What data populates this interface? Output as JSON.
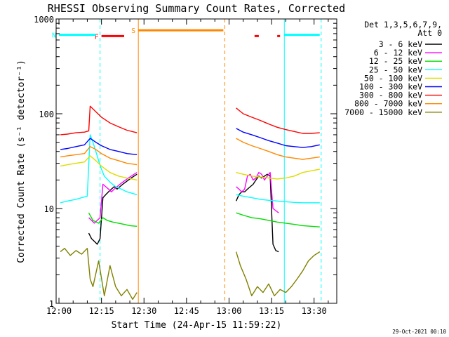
{
  "chart_data": {
    "type": "line",
    "title": "RHESSI Observing Summary Count Rates, Corrected",
    "xlabel": "Start Time (24-Apr-15 11:59:22)",
    "ylabel": "Corrected Count Rate (s⁻¹ detector⁻¹)",
    "x_unit": "minutes since 12:00",
    "xlim": [
      -1,
      98
    ],
    "ylim": [
      1,
      1000
    ],
    "yscale": "log",
    "x_ticks": [
      {
        "value": 0,
        "label": "12:00"
      },
      {
        "value": 15,
        "label": "12:15"
      },
      {
        "value": 30,
        "label": "12:30"
      },
      {
        "value": 45,
        "label": "12:45"
      },
      {
        "value": 60,
        "label": "13:00"
      },
      {
        "value": 75,
        "label": "13:15"
      },
      {
        "value": 90,
        "label": "13:30"
      }
    ],
    "y_ticks": [
      {
        "value": 1,
        "label": "1"
      },
      {
        "value": 10,
        "label": "10"
      },
      {
        "value": 100,
        "label": "100"
      },
      {
        "value": 1000,
        "label": "1000"
      }
    ],
    "legend_header": [
      "Det 1,3,5,6,7,9,",
      "Att 0"
    ],
    "legend_position": "right",
    "series": [
      {
        "name": "3 - 6 keV",
        "color": "#000000",
        "x": [
          10.5,
          11.5,
          12.5,
          13.5,
          14.5,
          15.5,
          16.5,
          17.5,
          18.5,
          19.5,
          20.5,
          21.5,
          22.5,
          23.5,
          24.5,
          25.5,
          26.5,
          27.5,
          62.5,
          63.5,
          64.5,
          65.5,
          66.5,
          67.5,
          68.5,
          69.5,
          70.5,
          71.5,
          72.5,
          73.5,
          74.5,
          75.5,
          76.5,
          77.5
        ],
        "y": [
          5.5,
          4.8,
          4.5,
          4.2,
          4.8,
          13,
          14,
          15,
          16,
          17,
          16,
          17,
          18,
          19,
          20,
          21,
          22,
          23,
          12,
          14,
          15,
          15,
          16,
          17,
          18,
          20,
          22,
          21,
          22,
          23,
          22,
          4.2,
          3.6,
          3.5
        ]
      },
      {
        "name": "6 - 12 keV",
        "color": "#ff00ff",
        "x": [
          10.5,
          11.5,
          12.5,
          13.5,
          14.5,
          15.5,
          16.5,
          17.5,
          18.5,
          19.5,
          20.5,
          21.5,
          22.5,
          23.5,
          24.5,
          25.5,
          26.5,
          27.5,
          62.5,
          63.5,
          64.5,
          65.5,
          66.5,
          67.5,
          68.5,
          69.5,
          70.5,
          71.5,
          72.5,
          73.5,
          74.5,
          75.5,
          76.5,
          77.5
        ],
        "y": [
          8,
          7.5,
          7,
          7.5,
          8,
          18,
          17,
          16,
          15,
          16,
          17,
          18,
          19,
          20,
          21,
          22,
          23,
          24,
          17,
          16,
          15,
          16,
          22,
          23,
          20,
          21,
          24,
          23,
          20,
          22,
          24,
          10,
          9.5,
          9
        ]
      },
      {
        "name": "12 - 25 keV",
        "color": "#00dd00",
        "x": [
          10.5,
          12,
          14,
          15.5,
          17,
          19,
          21,
          23,
          25,
          27.5,
          62.5,
          65,
          68,
          71,
          74,
          77,
          80,
          83,
          86,
          89,
          92
        ],
        "y": [
          9,
          7.5,
          7,
          8,
          7.5,
          7.2,
          7,
          6.8,
          6.6,
          6.5,
          9,
          8.5,
          8,
          7.8,
          7.5,
          7.2,
          7,
          6.8,
          6.6,
          6.5,
          6.4
        ]
      },
      {
        "name": "25 - 50 keV",
        "color": "#00ffff",
        "x": [
          0.5,
          3,
          6,
          8,
          10,
          11,
          12,
          13,
          14,
          15,
          16,
          18,
          20,
          22,
          24,
          27.5,
          62.5,
          65,
          68,
          71,
          74,
          77,
          80,
          83,
          86,
          89,
          92
        ],
        "y": [
          11.5,
          12,
          12.5,
          13,
          13.5,
          60,
          50,
          40,
          32,
          26,
          22,
          19,
          17,
          16,
          15,
          14,
          14,
          13.5,
          13,
          12.5,
          12.2,
          12,
          11.8,
          11.6,
          11.5,
          11.5,
          11.5
        ]
      },
      {
        "name": "50 - 100 keV",
        "color": "#dddd00",
        "x": [
          0.5,
          3,
          6,
          9,
          11,
          13,
          15,
          18,
          21,
          24,
          27.5,
          62.5,
          65,
          68,
          71,
          74,
          77,
          80,
          83,
          86,
          89,
          92
        ],
        "y": [
          28,
          29,
          30,
          31,
          36,
          32,
          28,
          24,
          22,
          21,
          20,
          24,
          23,
          22,
          21.5,
          21,
          20.5,
          21,
          22,
          24,
          25,
          26
        ]
      },
      {
        "name": "100 - 300 keV",
        "color": "#0000ff",
        "x": [
          0.5,
          3,
          6,
          9,
          11,
          13,
          15,
          18,
          21,
          24,
          27.5,
          62.5,
          65,
          68,
          71,
          74,
          77,
          80,
          83,
          86,
          89,
          92
        ],
        "y": [
          42,
          43,
          45,
          47,
          55,
          50,
          46,
          42,
          40,
          38,
          37,
          70,
          64,
          60,
          56,
          52,
          49,
          46,
          45,
          44,
          45,
          47
        ]
      },
      {
        "name": "300 - 800 keV",
        "color": "#ff0000",
        "x": [
          0.5,
          3,
          6,
          9,
          10.5,
          11,
          13,
          15,
          18,
          21,
          24,
          27.5,
          62.5,
          65,
          68,
          71,
          74,
          77,
          80,
          83,
          86,
          89,
          92
        ],
        "y": [
          60,
          61,
          63,
          64,
          66,
          120,
          105,
          92,
          80,
          73,
          67,
          63,
          115,
          100,
          92,
          85,
          78,
          72,
          68,
          65,
          62,
          62,
          63
        ]
      },
      {
        "name": "800 - 7000 keV",
        "color": "#ff8800",
        "x": [
          0.5,
          3,
          6,
          9,
          11,
          13,
          15,
          18,
          21,
          24,
          27.5,
          62.5,
          65,
          68,
          71,
          74,
          77,
          80,
          83,
          86,
          89,
          92
        ],
        "y": [
          35,
          36,
          37,
          38,
          45,
          42,
          38,
          34,
          32,
          30,
          29,
          55,
          50,
          46,
          43,
          40,
          37,
          35,
          34,
          33,
          34,
          35
        ]
      },
      {
        "name": "7000 - 15000 keV",
        "color": "#808000",
        "x": [
          0.5,
          2,
          4,
          6,
          8,
          10,
          11,
          12,
          14,
          16,
          18,
          20,
          22,
          24,
          26,
          27.5,
          62.5,
          64,
          66,
          68,
          70,
          72,
          74,
          76,
          78,
          80,
          82,
          84,
          86,
          88,
          90,
          92
        ],
        "y": [
          3.5,
          3.8,
          3.2,
          3.6,
          3.3,
          3.8,
          1.8,
          1.5,
          2.8,
          1.2,
          2.5,
          1.5,
          1.2,
          1.4,
          1.1,
          1.3,
          3.5,
          2.5,
          1.8,
          1.2,
          1.5,
          1.3,
          1.6,
          1.2,
          1.4,
          1.3,
          1.5,
          1.8,
          2.2,
          2.8,
          3.2,
          3.5
        ]
      }
    ],
    "event_bars": [
      {
        "label": "F",
        "color": "#ff0000",
        "segments": [
          [
            15,
            23
          ]
        ],
        "level": 660
      },
      {
        "label": "",
        "color": "#ff0000",
        "segments": [
          [
            69,
            70.5
          ],
          [
            77,
            78
          ]
        ],
        "level": 660
      },
      {
        "label": "N",
        "color": "#00ffff",
        "segments": [
          [
            0,
            13
          ],
          [
            79.5,
            92
          ]
        ],
        "level": 680
      },
      {
        "label": "S",
        "color": "#ff8800",
        "segments": [
          [
            28,
            58
          ]
        ],
        "level": 760
      }
    ],
    "vertical_lines": [
      {
        "x": 28,
        "color": "#ff8800",
        "style": "solid"
      },
      {
        "x": 58.5,
        "color": "#ff8800",
        "style": "dashed"
      },
      {
        "x": 14.5,
        "color": "#00ffff",
        "style": "dashed"
      },
      {
        "x": 79.5,
        "color": "#00ffff",
        "style": "solid"
      },
      {
        "x": 92.5,
        "color": "#00ffff",
        "style": "dashed"
      }
    ],
    "timestamp": "29-Oct-2021 00:10"
  }
}
